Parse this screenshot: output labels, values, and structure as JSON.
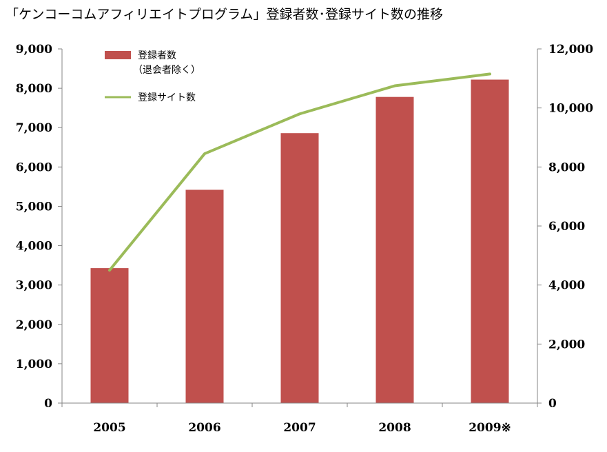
{
  "chart_data": {
    "type": "bar+line",
    "title": "「ケンコーコムアフィリエイトプログラム」登録者数･登録サイト数の推移",
    "categories": [
      "2005",
      "2006",
      "2007",
      "2008",
      "2009※"
    ],
    "series": [
      {
        "name": "登録者数",
        "name_sub": "（退会者除く）",
        "type": "bar",
        "axis": "left",
        "color": "#c0504d",
        "values": [
          3430,
          5420,
          6860,
          7780,
          8220
        ]
      },
      {
        "name": "登録サイト数",
        "type": "line",
        "axis": "right",
        "color": "#9bbb59",
        "values": [
          4500,
          8450,
          9800,
          10750,
          11150
        ]
      }
    ],
    "y_left": {
      "range": [
        0,
        9000
      ],
      "ticks": [
        "0",
        "1,000",
        "2,000",
        "3,000",
        "4,000",
        "5,000",
        "6,000",
        "7,000",
        "8,000",
        "9,000"
      ]
    },
    "y_right": {
      "range": [
        0,
        12000
      ],
      "ticks": [
        "0",
        "2,000",
        "4,000",
        "6,000",
        "8,000",
        "10,000",
        "12,000"
      ]
    },
    "grid": false,
    "legend_position": "top-left"
  }
}
